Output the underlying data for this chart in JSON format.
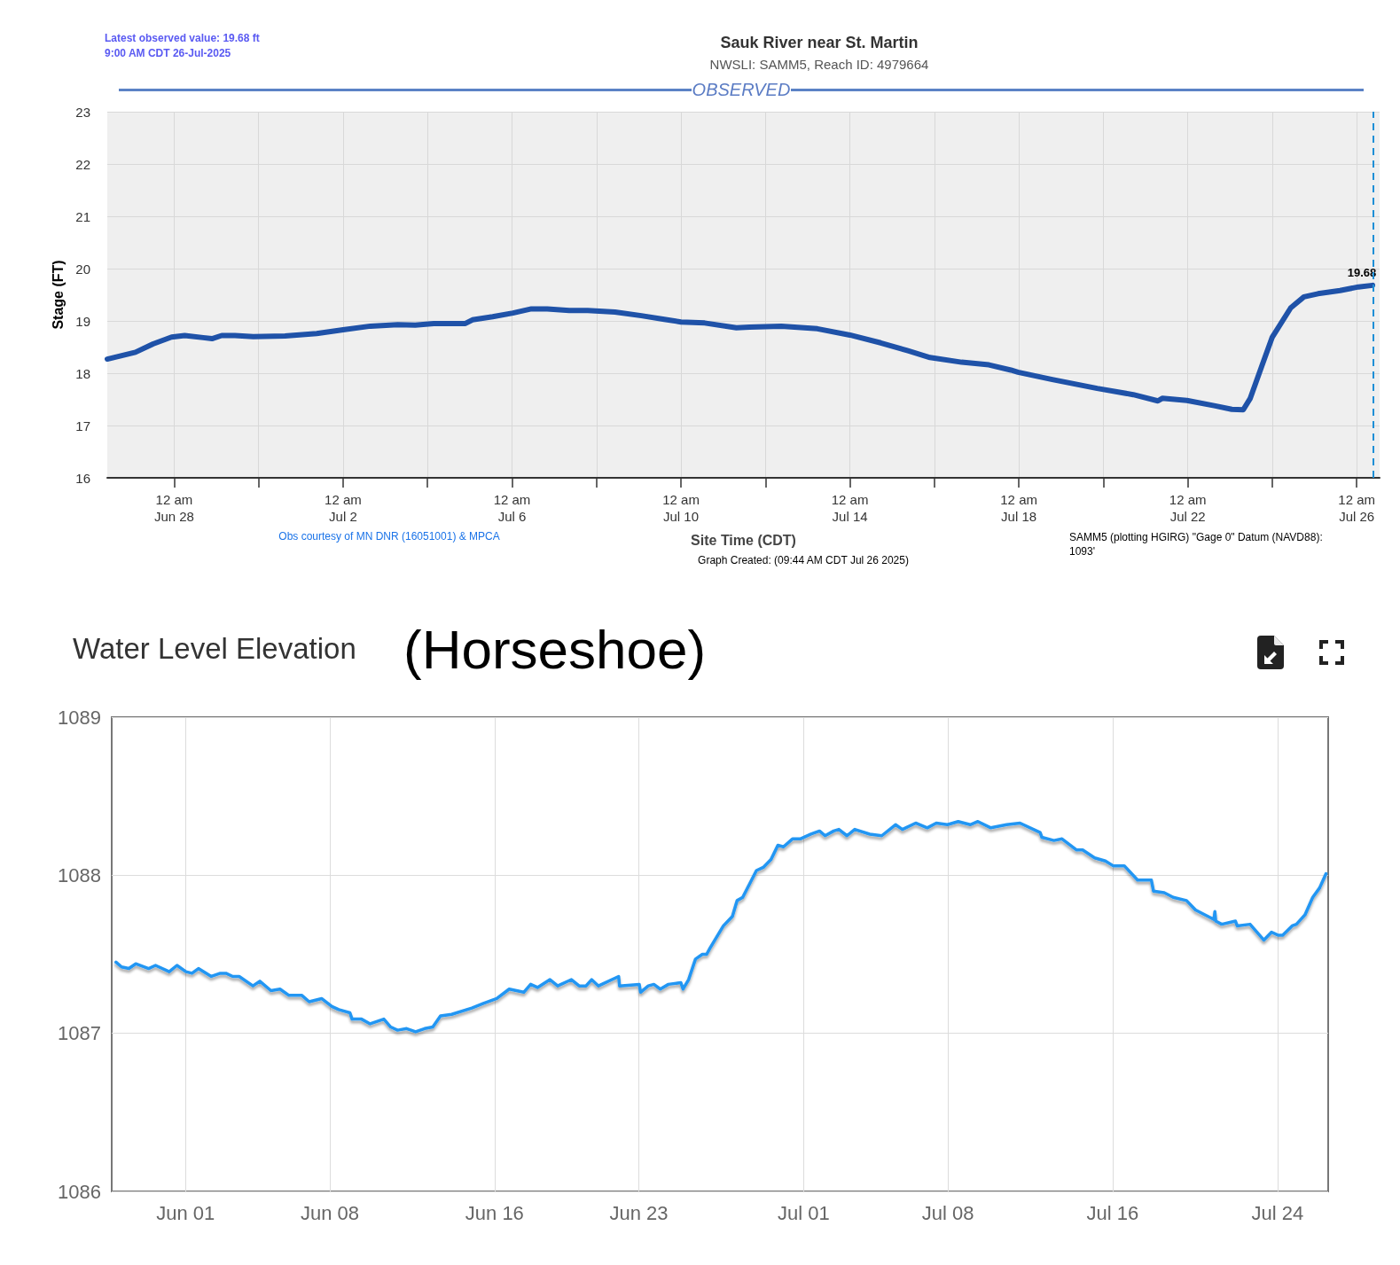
{
  "chart_data": [
    {
      "type": "line",
      "title": "Sauk River near St. Martin",
      "subtitle": "NWSLI: SAMM5, Reach ID: 4979664",
      "xlabel": "Site Time (CDT)",
      "ylabel": "Stage (FT)",
      "annotations": [
        "Latest observed value: 19.68 ft\n9:00 AM CDT 26-Jul-2025",
        "OBSERVED",
        {
          "text": "19.68",
          "x": "2025-07-26T09:00",
          "y": 19.68
        },
        "Obs courtesy of MN DNR (16051001) & MPCA",
        "Graph Created: (09:44 AM CDT Jul 26 2025)",
        "SAMM5 (plotting HGIRG) \"Gage 0\" Datum (NAVD88):\n1093'"
      ],
      "x": [
        "2025-06-26T10:00",
        "2025-06-27T02:00",
        "2025-06-27T12:00",
        "2025-06-27T22:30",
        "2025-06-28T06:00",
        "2025-06-28T16:30",
        "2025-06-28T21:30",
        "2025-06-29T03:00",
        "2025-06-29T10:30",
        "2025-06-29T21:00",
        "2025-06-30T15:00",
        "2025-07-01T09:00",
        "2025-07-02T00:00",
        "2025-07-02T15:30",
        "2025-07-03T07:00",
        "2025-07-03T17:00",
        "2025-07-04T03:30",
        "2025-07-04T21:30",
        "2025-07-05T01:30",
        "2025-07-05T13:00",
        "2025-07-06T00:30",
        "2025-07-06T11:00",
        "2025-07-06T20:00",
        "2025-07-07T08:30",
        "2025-07-07T19:00",
        "2025-07-08T10:30",
        "2025-07-09T01:30",
        "2025-07-09T14:30",
        "2025-07-10T00:00",
        "2025-07-10T13:30",
        "2025-07-11T07:30",
        "2025-07-11T15:00",
        "2025-07-12T09:00",
        "2025-07-13T05:30",
        "2025-07-14T00:00",
        "2025-07-14T17:30",
        "2025-07-15T09:00",
        "2025-07-15T21:30",
        "2025-07-16T15:30",
        "2025-07-17T07:00",
        "2025-07-17T19:30",
        "2025-07-17T23:30",
        "2025-07-18T19:00",
        "2025-07-19T20:30",
        "2025-07-20T17:00",
        "2025-07-21T07:00",
        "2025-07-21T09:30",
        "2025-07-21T23:30",
        "2025-07-22T15:00",
        "2025-07-23T01:00",
        "2025-07-23T07:30",
        "2025-07-23T11:30",
        "2025-07-23T18:00",
        "2025-07-24T00:00",
        "2025-07-24T10:30",
        "2025-07-24T18:00",
        "2025-07-25T02:00",
        "2025-07-25T14:30",
        "2025-07-26T01:00",
        "2025-07-26T09:00"
      ],
      "series": [
        {
          "color": "#1f52a8",
          "values": [
            18.27,
            18.4,
            18.56,
            18.69,
            18.72,
            18.68,
            18.66,
            18.72,
            18.72,
            18.7,
            18.71,
            18.76,
            18.83,
            18.9,
            18.93,
            18.92,
            18.95,
            18.95,
            19.02,
            19.08,
            19.15,
            19.23,
            19.23,
            19.2,
            19.2,
            19.17,
            19.1,
            19.03,
            18.98,
            18.96,
            18.87,
            18.88,
            18.9,
            18.85,
            18.73,
            18.58,
            18.43,
            18.3,
            18.21,
            18.16,
            18.06,
            18.02,
            17.88,
            17.71,
            17.59,
            17.47,
            17.52,
            17.48,
            17.38,
            17.31,
            17.3,
            17.52,
            18.13,
            18.69,
            19.25,
            19.46,
            19.52,
            19.58,
            19.65,
            19.68
          ]
        }
      ],
      "xlim": [
        "2025-06-26T10:00",
        "2025-07-26T13:00"
      ],
      "ylim": [
        16,
        23
      ],
      "xticks": [
        {
          "value": "2025-06-28T00:00",
          "label": "12 am\nJun 28"
        },
        {
          "value": "2025-06-30T00:00",
          "label": null
        },
        {
          "value": "2025-07-02T00:00",
          "label": "12 am\nJul 2"
        },
        {
          "value": "2025-07-04T00:00",
          "label": null
        },
        {
          "value": "2025-07-06T00:00",
          "label": "12 am\nJul 6"
        },
        {
          "value": "2025-07-08T00:00",
          "label": null
        },
        {
          "value": "2025-07-10T00:00",
          "label": "12 am\nJul 10"
        },
        {
          "value": "2025-07-12T00:00",
          "label": null
        },
        {
          "value": "2025-07-14T00:00",
          "label": "12 am\nJul 14"
        },
        {
          "value": "2025-07-16T00:00",
          "label": null
        },
        {
          "value": "2025-07-18T00:00",
          "label": "12 am\nJul 18"
        },
        {
          "value": "2025-07-20T00:00",
          "label": null
        },
        {
          "value": "2025-07-22T00:00",
          "label": "12 am\nJul 22"
        },
        {
          "value": "2025-07-24T00:00",
          "label": null
        },
        {
          "value": "2025-07-26T00:00",
          "label": "12 am\nJul 26"
        }
      ],
      "yticks": [
        16,
        17,
        18,
        19,
        20,
        21,
        22,
        23
      ],
      "grid": true,
      "ref_lines": [
        {
          "axis": "x",
          "value": "2025-07-26T09:30",
          "label": null,
          "color": "#1e8fd6",
          "line_style": "dashed"
        }
      ]
    },
    {
      "type": "line",
      "title": "Water Level Elevation",
      "subtitle": "(Horseshoe)",
      "x": [
        "--05-28T15:00",
        "--05-28T21:30",
        "--05-29T06:00",
        "--05-29T14:00",
        "--05-30T05:00",
        "--05-30T13:00",
        "--05-31T05:00",
        "--05-31T14:00",
        "--06-01T00:30",
        "--06-01T07:30",
        "--06-01T15:00",
        "--06-02T06:00",
        "--06-02T16:30",
        "--06-02T23:00",
        "--06-03T07:00",
        "--06-03T14:30",
        "--06-04T06:30",
        "--06-04T14:30",
        "--06-05T03:30",
        "--06-05T14:00",
        "--06-06T00:30",
        "--06-06T15:30",
        "--06-07T00:00",
        "--06-07T14:30",
        "--06-08T02:30",
        "--06-08T10:30",
        "--06-08T23:30",
        "--06-09T02:00",
        "--06-09T13:00",
        "--06-09T23:00",
        "--06-10T15:00",
        "--06-10T23:00",
        "--06-11T07:00",
        "--06-11T17:30",
        "--06-12T04:00",
        "--06-12T14:30",
        "--06-13T00:00",
        "--06-13T09:00",
        "--06-13T22:00",
        "--06-14T21:30",
        "--06-15T11:00",
        "--06-16T02:30",
        "--06-16T17:00",
        "--06-17T10:00",
        "--06-17T18:00",
        "--06-18T02:00",
        "--06-18T16:30",
        "--06-19T01:30",
        "--06-19T17:30",
        "--06-20T02:30",
        "--06-20T10:30",
        "--06-20T17:00",
        "--06-21T01:00",
        "--06-22T00:30",
        "--06-22T01:30",
        "--06-23T00:30",
        "--06-23T02:00",
        "--06-23T11:00",
        "--06-23T17:30",
        "--06-24T01:00",
        "--06-24T10:30",
        "--06-25T01:00",
        "--06-25T03:30",
        "--06-25T10:00",
        "--06-25T18:00",
        "--06-26T02:00",
        "--06-26T07:00",
        "--06-26T11:00",
        "--06-27T02:30",
        "--06-27T13:00",
        "--06-27T18:30",
        "--06-28T01:00",
        "--06-28T17:00",
        "--06-29T01:00",
        "--06-29T10:00",
        "--06-29T18:00",
        "--06-30T00:30",
        "--06-30T11:00",
        "--06-30T20:00",
        "--07-01T08:30",
        "--07-01T18:30",
        "--07-02T01:00",
        "--07-02T11:00",
        "--07-02T17:00",
        "--07-03T02:30",
        "--07-03T11:30",
        "--07-04T05:00",
        "--07-04T19:00",
        "--07-05T11:00",
        "--07-05T19:00",
        "--07-06T10:30",
        "--07-07T00:00",
        "--07-07T10:30",
        "--07-07T23:30",
        "--07-08T12:00",
        "--07-09T02:00",
        "--07-09T11:00",
        "--07-10T02:00",
        "--07-10T20:30",
        "--07-11T12:00",
        "--07-12T11:30",
        "--07-12T13:30",
        "--07-13T03:30",
        "--07-13T13:00",
        "--07-14T06:00",
        "--07-14T13:00",
        "--07-15T03:00",
        "--07-15T15:30",
        "--07-16T00:30",
        "--07-16T13:30",
        "--07-17T05:00",
        "--07-17T21:00",
        "--07-17T23:30",
        "--07-18T12:00",
        "--07-18T22:30",
        "--07-19T14:00",
        "--07-20T00:30",
        "--07-20T22:00",
        "--07-20T23:00",
        "--07-21T00:00",
        "--07-21T07:00",
        "--07-21T23:00",
        "--07-22T01:00",
        "--07-22T16:00",
        "--07-23T08:00",
        "--07-23T17:00",
        "--07-24T01:00",
        "--07-24T06:00",
        "--07-24T17:00",
        "--07-24T22:00",
        "--07-25T08:00",
        "--07-25T17:00",
        "--07-26T01:00",
        "--07-26T08:30"
      ],
      "series": [
        {
          "color": "#2196f3",
          "values": [
            1087.45,
            1087.42,
            1087.41,
            1087.44,
            1087.41,
            1087.43,
            1087.39,
            1087.43,
            1087.39,
            1087.38,
            1087.41,
            1087.36,
            1087.38,
            1087.38,
            1087.36,
            1087.36,
            1087.3,
            1087.33,
            1087.27,
            1087.28,
            1087.24,
            1087.24,
            1087.2,
            1087.22,
            1087.17,
            1087.15,
            1087.13,
            1087.09,
            1087.09,
            1087.06,
            1087.09,
            1087.04,
            1087.02,
            1087.03,
            1087.01,
            1087.03,
            1087.04,
            1087.11,
            1087.12,
            1087.16,
            1087.19,
            1087.22,
            1087.28,
            1087.26,
            1087.31,
            1087.29,
            1087.34,
            1087.3,
            1087.34,
            1087.3,
            1087.3,
            1087.34,
            1087.3,
            1087.36,
            1087.3,
            1087.31,
            1087.26,
            1087.3,
            1087.31,
            1087.28,
            1087.31,
            1087.32,
            1087.28,
            1087.34,
            1087.47,
            1087.5,
            1087.5,
            1087.54,
            1087.68,
            1087.74,
            1087.84,
            1087.86,
            1088.03,
            1088.05,
            1088.1,
            1088.19,
            1088.18,
            1088.23,
            1088.23,
            1088.26,
            1088.28,
            1088.25,
            1088.28,
            1088.29,
            1088.25,
            1088.29,
            1088.26,
            1088.25,
            1088.32,
            1088.29,
            1088.33,
            1088.3,
            1088.33,
            1088.32,
            1088.34,
            1088.32,
            1088.34,
            1088.3,
            1088.32,
            1088.33,
            1088.27,
            1088.24,
            1088.22,
            1088.23,
            1088.16,
            1088.16,
            1088.11,
            1088.09,
            1088.06,
            1088.06,
            1087.97,
            1087.97,
            1087.9,
            1087.89,
            1087.86,
            1087.84,
            1087.78,
            1087.72,
            1087.77,
            1087.71,
            1087.69,
            1087.71,
            1087.68,
            1087.69,
            1087.59,
            1087.64,
            1087.62,
            1087.62,
            1087.68,
            1087.69,
            1087.75,
            1087.86,
            1087.92,
            1088.01
          ]
        }
      ],
      "xlim": [
        "--05-28T10:00",
        "--07-26T11:00"
      ],
      "ylim": [
        1086,
        1089
      ],
      "xticks": [
        {
          "value": "--06-01",
          "label": "Jun 01"
        },
        {
          "value": "--06-08",
          "label": "Jun 08"
        },
        {
          "value": "--06-16",
          "label": "Jun 16"
        },
        {
          "value": "--06-23",
          "label": "Jun 23"
        },
        {
          "value": "--07-01",
          "label": "Jul 01"
        },
        {
          "value": "--07-08",
          "label": "Jul 08"
        },
        {
          "value": "--07-16",
          "label": "Jul 16"
        },
        {
          "value": "--07-24",
          "label": "Jul 24"
        }
      ],
      "yticks": [
        1086,
        1087,
        1088,
        1089
      ],
      "grid": true
    }
  ]
}
